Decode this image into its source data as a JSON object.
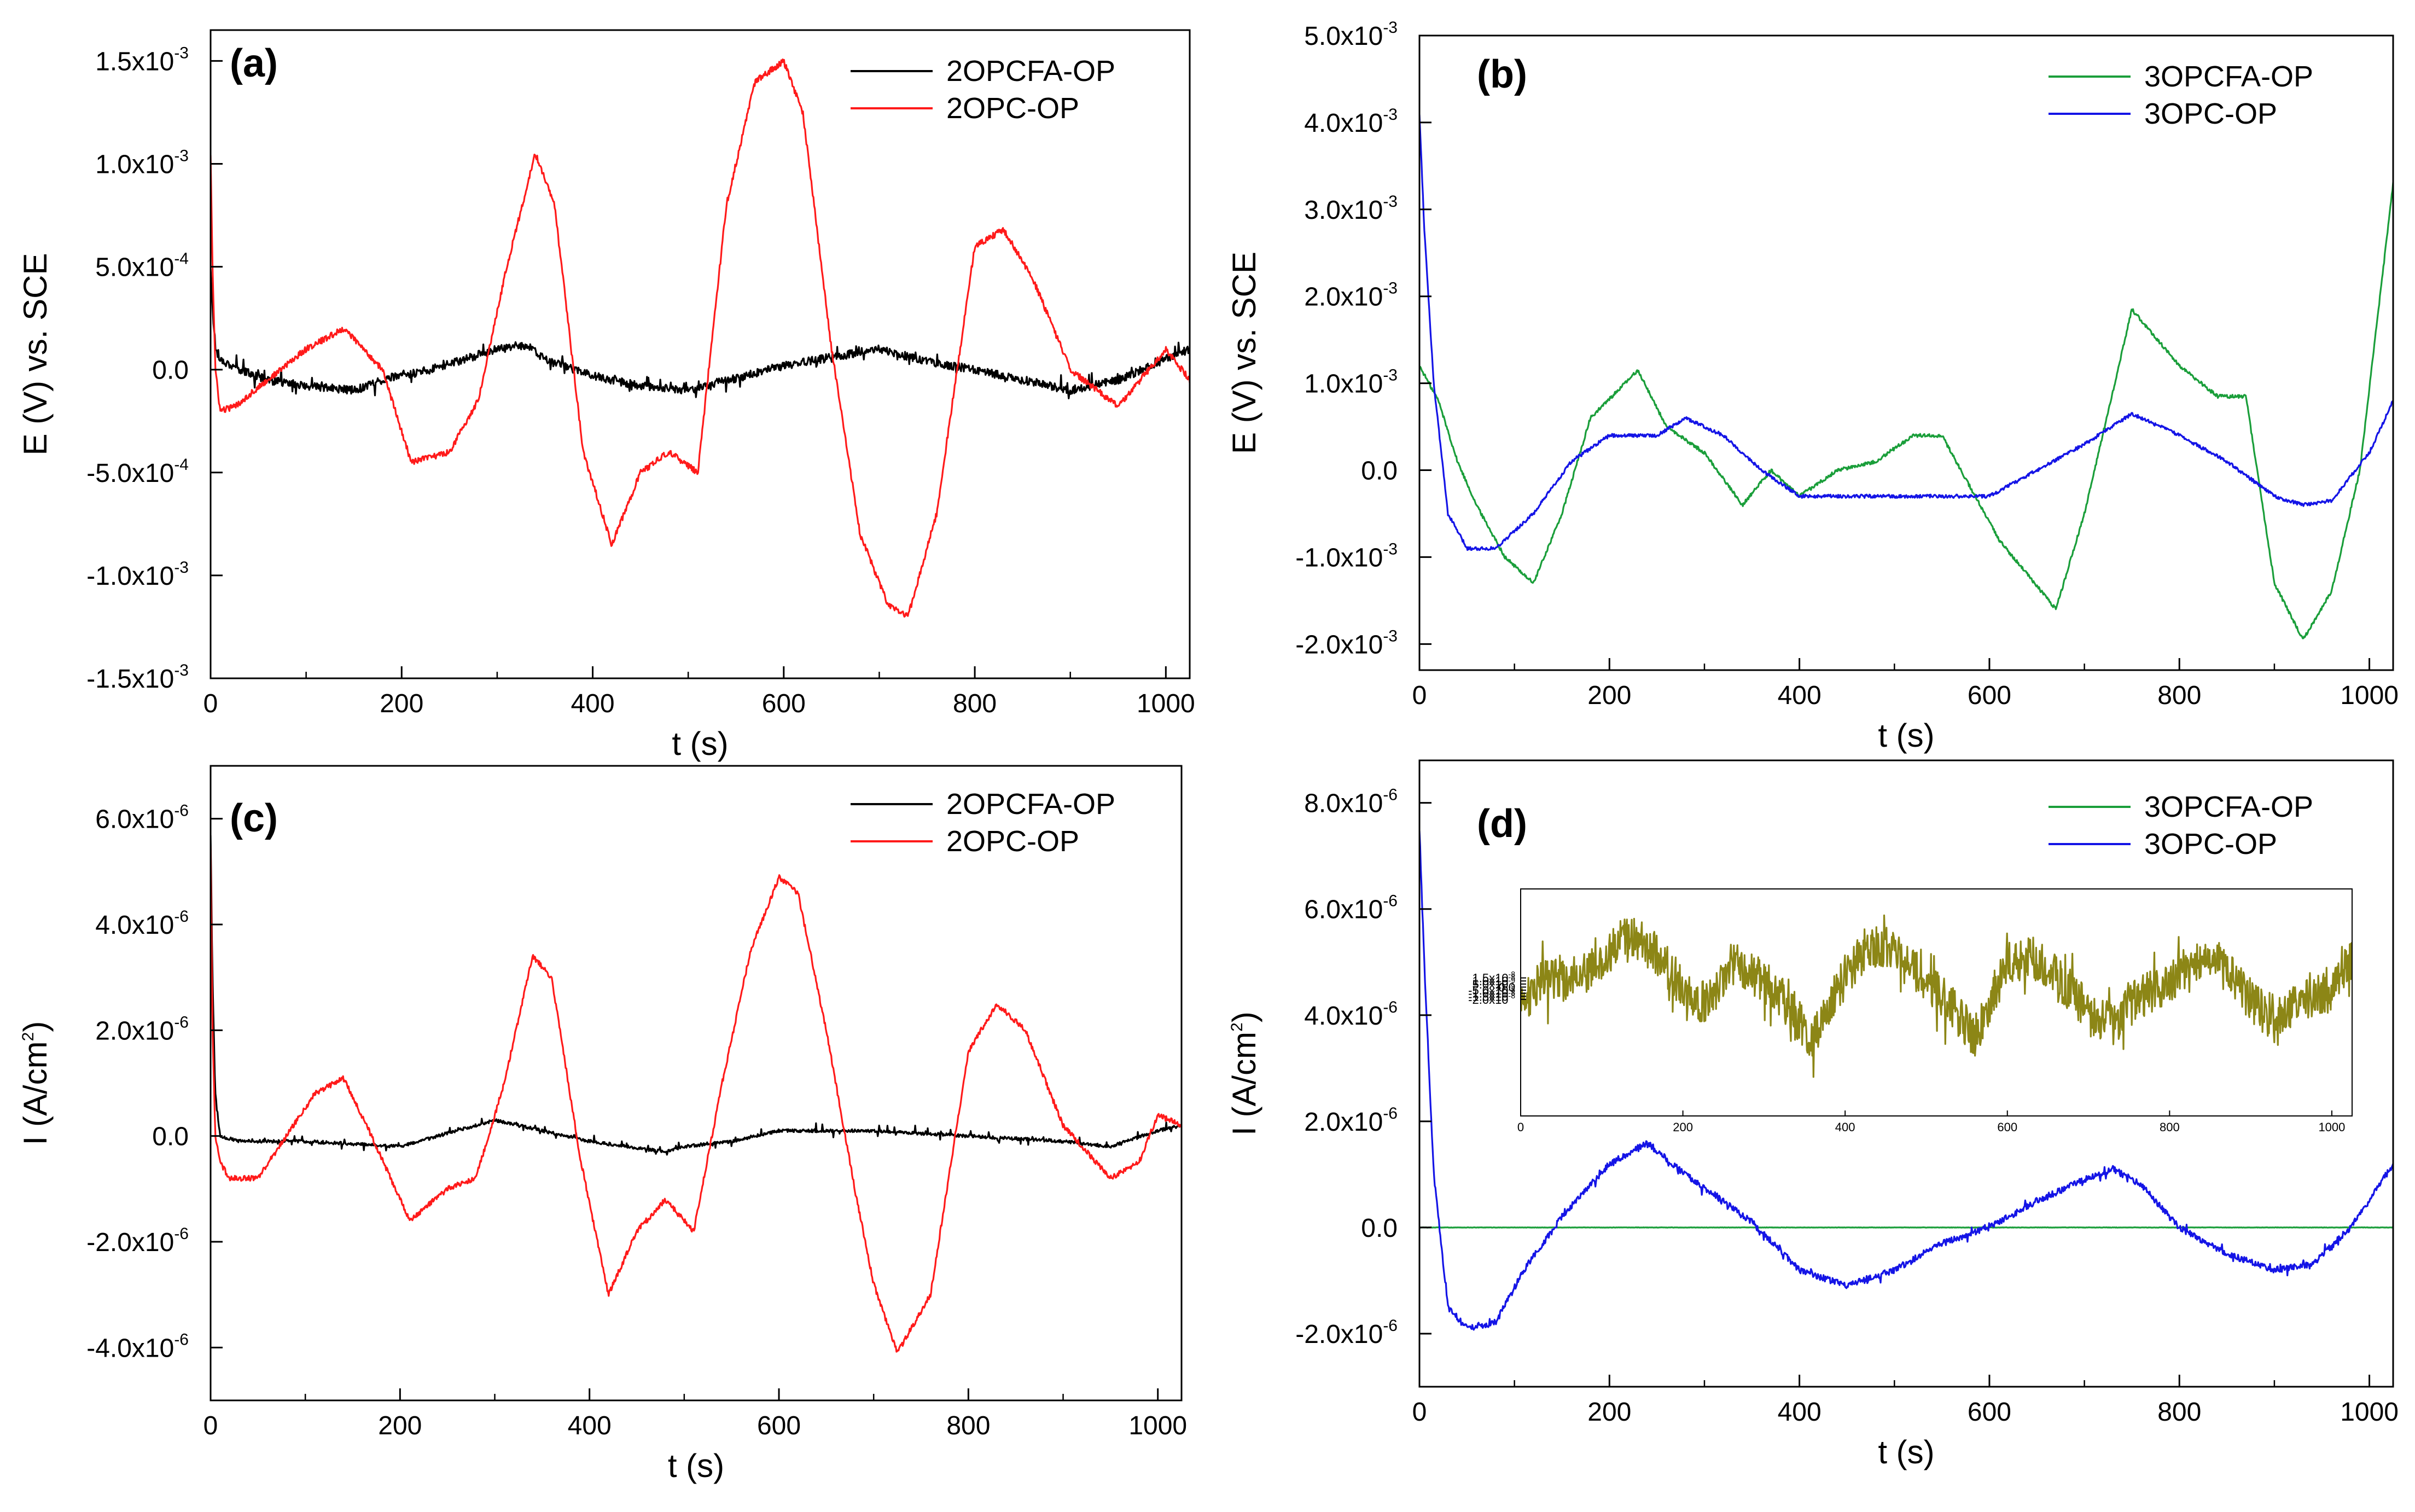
{
  "colors": {
    "black": "#000000",
    "red": "#ff1a1a",
    "green": "#1a9e3a",
    "blue": "#1414e6",
    "olive": "#8c8616"
  },
  "chart_data": [
    {
      "id": "a",
      "type": "line",
      "panel_label": "(a)",
      "xlabel": "t (s)",
      "ylabel": "E (V) vs. SCE",
      "xlim": [
        0,
        1025
      ],
      "ylim": [
        -0.0015,
        0.00165
      ],
      "xticks": [
        "0",
        "200",
        "400",
        "600",
        "800",
        "1000"
      ],
      "yticks": [
        {
          "m": "-1.5x10",
          "e": "-3"
        },
        {
          "m": "-1.0x10",
          "e": "-3"
        },
        {
          "m": "-5.0x10",
          "e": "-4"
        },
        {
          "m": "0.0",
          "e": ""
        },
        {
          "m": "5.0x10",
          "e": "-4"
        },
        {
          "m": "1.0x10",
          "e": "-3"
        },
        {
          "m": "1.5x10",
          "e": "-3"
        }
      ],
      "series": [
        {
          "name": "2OPCFA-OP",
          "color": "black",
          "noise": 2e-05,
          "spike": 5e-05,
          "x": [
            0,
            2,
            5,
            10,
            30,
            60,
            100,
            150,
            180,
            230,
            300,
            330,
            350,
            400,
            450,
            500,
            560,
            600,
            650,
            700,
            750,
            800,
            850,
            900,
            950,
            1000,
            1025
          ],
          "y": [
            0.0005,
            0.0003,
            0.0001,
            5e-05,
            0.0,
            -5e-05,
            -8e-05,
            -0.0001,
            -5e-05,
            0.0,
            0.0001,
            0.00012,
            5e-05,
            -3e-05,
            -8e-05,
            -0.0001,
            -3e-05,
            2e-05,
            6e-05,
            0.0001,
            4e-05,
            0.0,
            -5e-05,
            -0.0001,
            -5e-05,
            5e-05,
            0.0001
          ]
        },
        {
          "name": "2OPC-OP",
          "color": "red",
          "noise": 1.5e-05,
          "spike": 0,
          "x": [
            0,
            2,
            5,
            10,
            25,
            60,
            100,
            140,
            180,
            210,
            250,
            280,
            310,
            340,
            360,
            390,
            420,
            450,
            480,
            510,
            540,
            570,
            600,
            620,
            650,
            680,
            710,
            730,
            760,
            800,
            830,
            860,
            900,
            950,
            1000,
            1025
          ],
          "y": [
            0.00105,
            0.0005,
            0.0,
            -0.0002,
            -0.00018,
            -5e-05,
            0.0001,
            0.0002,
            0.0,
            -0.00045,
            -0.0004,
            -0.00015,
            0.0005,
            0.00105,
            0.0008,
            -0.0004,
            -0.00085,
            -0.0005,
            -0.0004,
            -0.0005,
            0.0008,
            0.0014,
            0.0015,
            0.00125,
            0.0001,
            -0.0008,
            -0.00115,
            -0.0012,
            -0.0007,
            0.0006,
            0.00068,
            0.00045,
            0.0,
            -0.00018,
            0.0001,
            -5e-05
          ]
        }
      ],
      "legend": [
        "2OPCFA-OP",
        "2OPC-OP"
      ]
    },
    {
      "id": "b",
      "type": "line",
      "panel_label": "(b)",
      "xlabel": "t (s)",
      "ylabel": "E (V) vs. SCE",
      "xlim": [
        0,
        1025
      ],
      "ylim": [
        -0.0023,
        0.005
      ],
      "xticks": [
        "0",
        "200",
        "400",
        "600",
        "800",
        "1000"
      ],
      "yticks": [
        {
          "m": "-2.0x10",
          "e": "-3"
        },
        {
          "m": "-1.0x10",
          "e": "-3"
        },
        {
          "m": "0.0",
          "e": ""
        },
        {
          "m": "1.0x10",
          "e": "-3"
        },
        {
          "m": "2.0x10",
          "e": "-3"
        },
        {
          "m": "3.0x10",
          "e": "-3"
        },
        {
          "m": "4.0x10",
          "e": "-3"
        },
        {
          "m": "5.0x10",
          "e": "-3"
        }
      ],
      "series": [
        {
          "name": "3OPCFA-OP",
          "color": "green",
          "noise": 2e-05,
          "spike": 0,
          "x": [
            0,
            20,
            40,
            60,
            90,
            120,
            150,
            180,
            230,
            260,
            300,
            340,
            370,
            400,
            440,
            480,
            520,
            550,
            580,
            610,
            640,
            670,
            700,
            750,
            800,
            840,
            870,
            900,
            930,
            960,
            990,
            1025
          ],
          "y": [
            0.0012,
            0.0008,
            0.0001,
            -0.0004,
            -0.001,
            -0.0013,
            -0.0005,
            0.0006,
            0.00115,
            0.0005,
            0.0002,
            -0.0004,
            0.0,
            -0.0003,
            0.0,
            0.0001,
            0.0004,
            0.0004,
            -0.0002,
            -0.0008,
            -0.0012,
            -0.0016,
            -0.0005,
            0.00185,
            0.0012,
            0.00085,
            0.00085,
            -0.0013,
            -0.00195,
            -0.0014,
            0.0,
            0.0033
          ]
        },
        {
          "name": "3OPC-OP",
          "color": "blue",
          "noise": 2e-05,
          "spike": 0,
          "x": [
            0,
            5,
            15,
            30,
            50,
            80,
            120,
            160,
            200,
            250,
            280,
            320,
            360,
            400,
            450,
            500,
            550,
            600,
            650,
            700,
            750,
            800,
            850,
            900,
            930,
            960,
            1000,
            1025
          ],
          "y": [
            0.0041,
            0.0028,
            0.001,
            -0.0005,
            -0.0009,
            -0.0009,
            -0.0005,
            0.0001,
            0.0004,
            0.0004,
            0.0006,
            0.0004,
            0.0,
            -0.0003,
            -0.0003,
            -0.0003,
            -0.0003,
            -0.0003,
            0.0,
            0.0003,
            0.00065,
            0.0004,
            0.0001,
            -0.0003,
            -0.0004,
            -0.00035,
            0.0002,
            0.0008
          ]
        }
      ],
      "legend": [
        "3OPCFA-OP",
        "3OPC-OP"
      ]
    },
    {
      "id": "c",
      "type": "line",
      "panel_label": "(c)",
      "xlabel": "t (s)",
      "ylabel": "I (A/cm",
      "ylabel_sup": "2",
      "ylabel_end": ")",
      "xlim": [
        0,
        1025
      ],
      "ylim": [
        -5e-06,
        7e-06
      ],
      "xticks": [
        "0",
        "200",
        "400",
        "600",
        "800",
        "1000"
      ],
      "yticks": [
        {
          "m": "-4.0x10",
          "e": "-6"
        },
        {
          "m": "-2.0x10",
          "e": "-6"
        },
        {
          "m": "0.0",
          "e": ""
        },
        {
          "m": "2.0x10",
          "e": "-6"
        },
        {
          "m": "4.0x10",
          "e": "-6"
        },
        {
          "m": "6.0x10",
          "e": "-6"
        }
      ],
      "series": [
        {
          "name": "2OPCFA-OP",
          "color": "black",
          "noise": 3e-08,
          "spike": 1.2e-07,
          "x": [
            0,
            2,
            5,
            10,
            30,
            100,
            200,
            300,
            350,
            400,
            480,
            500,
            550,
            600,
            700,
            800,
            900,
            950,
            1000,
            1025
          ],
          "y": [
            5.7e-06,
            3e-06,
            8e-07,
            0.0,
            -1e-07,
            -1e-07,
            -2e-07,
            3e-07,
            1e-07,
            -1e-07,
            -3e-07,
            -2e-07,
            -1e-07,
            1e-07,
            1e-07,
            0.0,
            -1e-07,
            -2e-07,
            1e-07,
            2e-07
          ]
        },
        {
          "name": "2OPC-OP",
          "color": "red",
          "noise": 5e-08,
          "spike": 0,
          "x": [
            0,
            2,
            5,
            10,
            20,
            50,
            80,
            110,
            140,
            170,
            210,
            250,
            280,
            310,
            340,
            360,
            390,
            420,
            450,
            480,
            510,
            540,
            570,
            600,
            620,
            650,
            680,
            700,
            725,
            760,
            800,
            830,
            860,
            900,
            950,
            980,
            1000,
            1025
          ],
          "y": [
            5.5e-06,
            2e-06,
            0.0,
            -5e-07,
            -8e-07,
            -8e-07,
            0.0,
            8e-07,
            1.1e-06,
            0.0,
            -1.6e-06,
            -1e-06,
            -8e-07,
            1e-06,
            3.4e-06,
            3e-06,
            -4e-07,
            -3e-06,
            -1.8e-06,
            -1.2e-06,
            -1.8e-06,
            1e-06,
            3.5e-06,
            4.9e-06,
            4.6e-06,
            2e-06,
            -1e-06,
            -2.8e-06,
            -4.1e-06,
            -3e-06,
            1.6e-06,
            2.5e-06,
            2e-06,
            2e-07,
            -8e-07,
            -5e-07,
            4e-07,
            2e-07
          ]
        }
      ],
      "legend": [
        "2OPCFA-OP",
        "2OPC-OP"
      ]
    },
    {
      "id": "d",
      "type": "line",
      "panel_label": "(d)",
      "xlabel": "t (s)",
      "ylabel": "I (A/cm",
      "ylabel_sup": "2",
      "ylabel_end": ")",
      "xlim": [
        0,
        1025
      ],
      "ylim": [
        -3e-06,
        8.8e-06
      ],
      "xticks": [
        "0",
        "200",
        "400",
        "600",
        "800",
        "1000"
      ],
      "yticks": [
        {
          "m": "-2.0x10",
          "e": "-6"
        },
        {
          "m": "0.0",
          "e": ""
        },
        {
          "m": "2.0x10",
          "e": "-6"
        },
        {
          "m": "4.0x10",
          "e": "-6"
        },
        {
          "m": "6.0x10",
          "e": "-6"
        },
        {
          "m": "8.0x10",
          "e": "-6"
        }
      ],
      "series": [
        {
          "name": "3OPCFA-OP",
          "color": "green",
          "noise": 3e-09,
          "spike": 0,
          "x": [
            0,
            1025
          ],
          "y": [
            0.0,
            0.0
          ]
        },
        {
          "name": "3OPC-OP",
          "color": "blue",
          "noise": 6e-08,
          "spike": 1.2e-07,
          "x": [
            0,
            5,
            15,
            30,
            50,
            80,
            110,
            150,
            200,
            240,
            280,
            320,
            350,
            400,
            450,
            500,
            550,
            600,
            650,
            700,
            730,
            760,
            800,
            850,
            900,
            940,
            980,
            1000,
            1025
          ],
          "y": [
            7.5e-06,
            5e-06,
            1e-06,
            -1.5e-06,
            -1.9e-06,
            -1.8e-06,
            -8e-07,
            2e-07,
            1.2e-06,
            1.6e-06,
            1e-06,
            5e-07,
            1e-07,
            -8e-07,
            -1.1e-06,
            -8e-07,
            -3e-07,
            0.0,
            5e-07,
            9e-07,
            1.1e-06,
            8e-07,
            0.0,
            -5e-07,
            -8e-07,
            -7e-07,
            0.0,
            5e-07,
            1.2e-06
          ]
        }
      ],
      "legend": [
        "3OPCFA-OP",
        "3OPC-OP"
      ],
      "inset": {
        "xlim": [
          0,
          1025
        ],
        "ylim": [
          -2.1e-07,
          1.6e-07
        ],
        "xticks": [
          "0",
          "200",
          "400",
          "600",
          "800",
          "1000"
        ],
        "yticks": [
          {
            "m": "-2.0x10",
            "e": "-8"
          },
          {
            "m": "-1.5x10",
            "e": "-8"
          },
          {
            "m": "-1.0x10",
            "e": "-8"
          },
          {
            "m": "-5.0x10",
            "e": "-9"
          },
          {
            "m": "0.0",
            "e": ""
          },
          {
            "m": "5.0x10",
            "e": "-9"
          },
          {
            "m": "1.0x10",
            "e": "-8"
          },
          {
            "m": "1.5x10",
            "e": "-8"
          }
        ],
        "series": {
          "name": "3OPCFA-OP",
          "color": "olive",
          "noise": 3.5e-08,
          "spike": 5e-08,
          "x": [
            0,
            30,
            60,
            100,
            130,
            170,
            200,
            230,
            260,
            300,
            330,
            360,
            400,
            430,
            460,
            500,
            530,
            560,
            600,
            630,
            660,
            700,
            730,
            760,
            800,
            830,
            860,
            900,
            930,
            960,
            1000,
            1025
          ],
          "y": [
            -3e-08,
            2e-08,
            1e-08,
            4e-08,
            9e-08,
            5e-08,
            0.0,
            -3e-08,
            4e-08,
            1e-08,
            -3e-08,
            -9e-08,
            2e-08,
            7e-08,
            6e-08,
            1e-08,
            -3e-08,
            -8e-08,
            4e-08,
            5e-08,
            2e-08,
            -4e-08,
            -6e-08,
            -2e-08,
            1e-08,
            4e-08,
            4e-08,
            -2e-08,
            -6e-08,
            -2e-08,
            -1e-08,
            5e-08
          ]
        }
      }
    }
  ]
}
